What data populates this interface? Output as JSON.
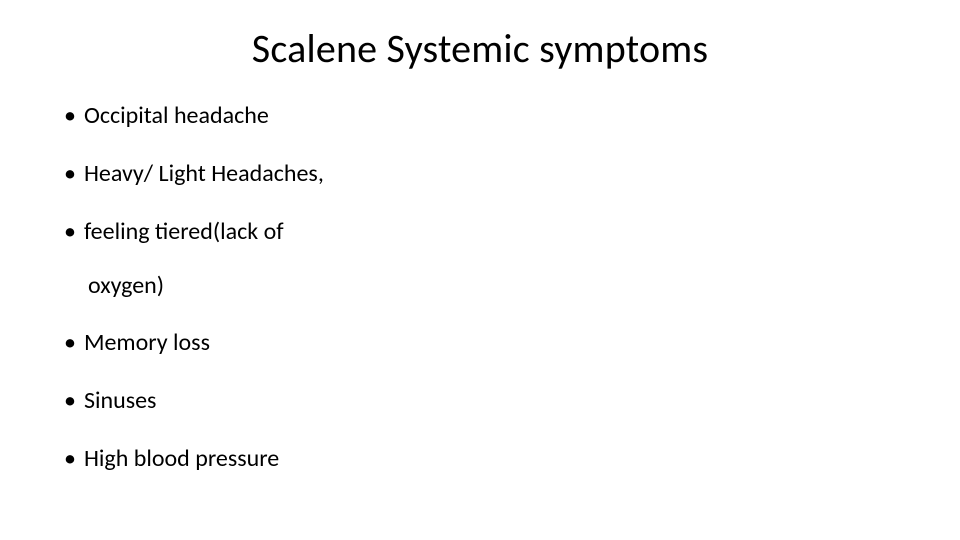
{
  "slide": {
    "title": "Scalene Systemic symptoms",
    "bullets": [
      "Occipital headache",
      "Heavy/ Light Headaches,",
      "feeling tiered(lack of",
      "Memory loss",
      "Sinuses",
      "High blood pressure"
    ],
    "continuation": "oxygen)",
    "title_fontsize": 40,
    "bullet_fontsize": 24,
    "text_color": "#000000",
    "background_color": "#ffffff"
  }
}
